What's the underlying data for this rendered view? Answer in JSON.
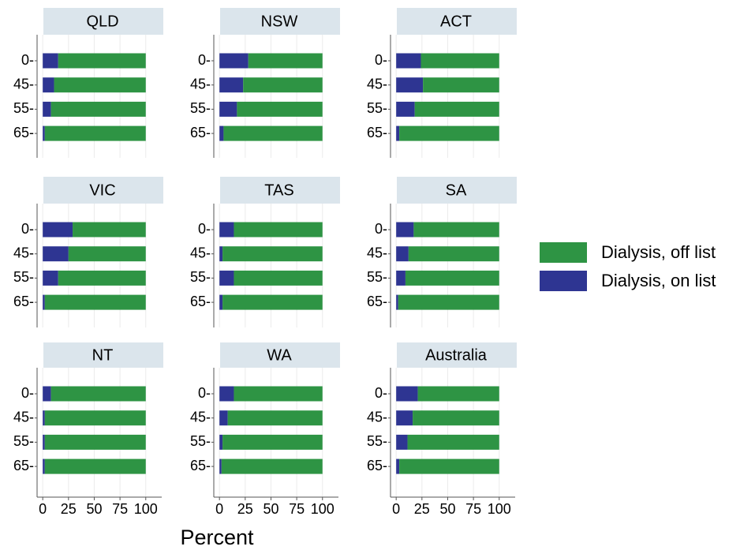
{
  "chart_data": {
    "type": "bar",
    "orientation": "horizontal",
    "stacked": true,
    "xlabel": "Percent",
    "categories": [
      "0-",
      "45-",
      "55-",
      "65-"
    ],
    "xlim": [
      -5.5,
      115.5
    ],
    "xticks": [
      0,
      25,
      50,
      75,
      100
    ],
    "grid": true,
    "legend": "right",
    "series": [
      {
        "name": "Dialysis, off list",
        "color": "#2e9444"
      },
      {
        "name": "Dialysis, on list",
        "color": "#2e3592"
      }
    ],
    "stack_order": [
      1,
      0
    ],
    "panels": [
      {
        "title": "QLD",
        "values": [
          [
            85,
            89,
            92,
            98
          ],
          [
            15,
            11,
            8,
            2
          ]
        ]
      },
      {
        "title": "NSW",
        "values": [
          [
            72,
            77,
            83,
            96
          ],
          [
            28,
            23,
            17,
            4
          ]
        ]
      },
      {
        "title": "ACT",
        "values": [
          [
            76,
            74,
            82,
            97
          ],
          [
            24,
            26,
            18,
            3
          ]
        ]
      },
      {
        "title": "VIC",
        "values": [
          [
            71,
            75,
            85,
            98
          ],
          [
            29,
            25,
            15,
            2
          ]
        ]
      },
      {
        "title": "TAS",
        "values": [
          [
            86,
            97,
            86,
            97
          ],
          [
            14,
            3,
            14,
            3
          ]
        ]
      },
      {
        "title": "SA",
        "values": [
          [
            83,
            88,
            91,
            98
          ],
          [
            17,
            12,
            9,
            2
          ]
        ]
      },
      {
        "title": "NT",
        "values": [
          [
            92,
            98,
            98,
            98
          ],
          [
            8,
            2,
            2,
            2
          ]
        ]
      },
      {
        "title": "WA",
        "values": [
          [
            86,
            92,
            97,
            98
          ],
          [
            14,
            8,
            3,
            2
          ]
        ]
      },
      {
        "title": "Australia",
        "values": [
          [
            79,
            84,
            89,
            97
          ],
          [
            21,
            16,
            11,
            3
          ]
        ]
      }
    ]
  }
}
